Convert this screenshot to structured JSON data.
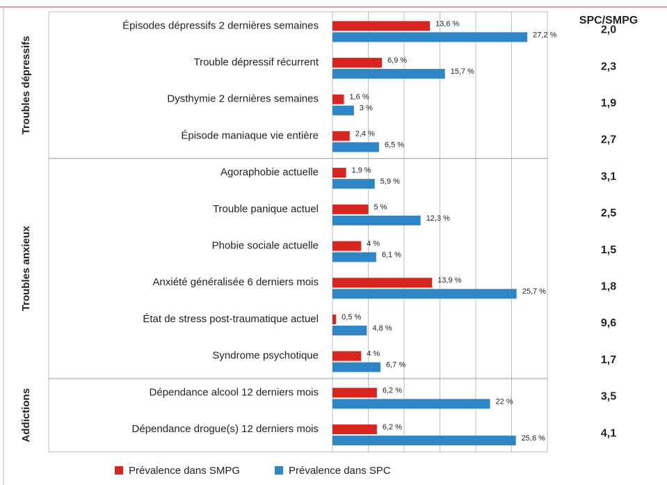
{
  "chart_data": {
    "type": "hbar",
    "categories": [
      "Épisodes dépressifs 2 dernières semaines",
      "Trouble dépressif récurrent",
      "Dysthymie 2 dernières semaines",
      "Épisode maniaque vie entière",
      "Agoraphobie actuelle",
      "Trouble panique actuel",
      "Phobie sociale actuelle",
      "Anxiété généralisée 6 derniers mois",
      "État de stress post-traumatique actuel",
      "Syndrome psychotique",
      "Dépendance alcool 12 derniers mois",
      "Dépendance drogue(s) 12 derniers mois"
    ],
    "groups": [
      "Troubles dépressifs",
      "Troubles anxieux",
      "Addictions"
    ],
    "series": [
      {
        "name": "Prévalence dans SMPG",
        "color": "#d7251f",
        "values": [
          13.6,
          6.9,
          1.6,
          2.4,
          1.9,
          5,
          4,
          13.9,
          0.5,
          4,
          6.2,
          6.2
        ],
        "value_labels": [
          "13,6 %",
          "6,9 %",
          "1,6 %",
          "2,4 %",
          "1,9 %",
          "5 %",
          "4 %",
          "13,9 %",
          "0,5 %",
          "4 %",
          "6,2 %",
          "6,2 %"
        ]
      },
      {
        "name": "Prévalence dans SPC",
        "color": "#2f86c6",
        "values": [
          27.2,
          15.7,
          3,
          6.5,
          5.9,
          12.3,
          6.1,
          25.7,
          4.8,
          6.7,
          22,
          25.6
        ],
        "value_labels": [
          "27,2 %",
          "15,7 %",
          "3 %",
          "6,5 %",
          "5,9 %",
          "12,3 %",
          "6,1 %",
          "25,7 %",
          "4,8 %",
          "6,7 %",
          "22 %",
          "25,6 %"
        ]
      }
    ],
    "ratio_column": {
      "title": "SPC/SMPG",
      "labels": [
        "2,0",
        "2,3",
        "1,9",
        "2,7",
        "3,1",
        "2,5",
        "1,5",
        "1,8",
        "9,6",
        "1,7",
        "3,5",
        "4,1"
      ]
    },
    "xlim": [
      0,
      30
    ],
    "xticks": [
      0,
      5,
      10,
      15,
      20,
      25,
      30
    ],
    "grid": true
  }
}
